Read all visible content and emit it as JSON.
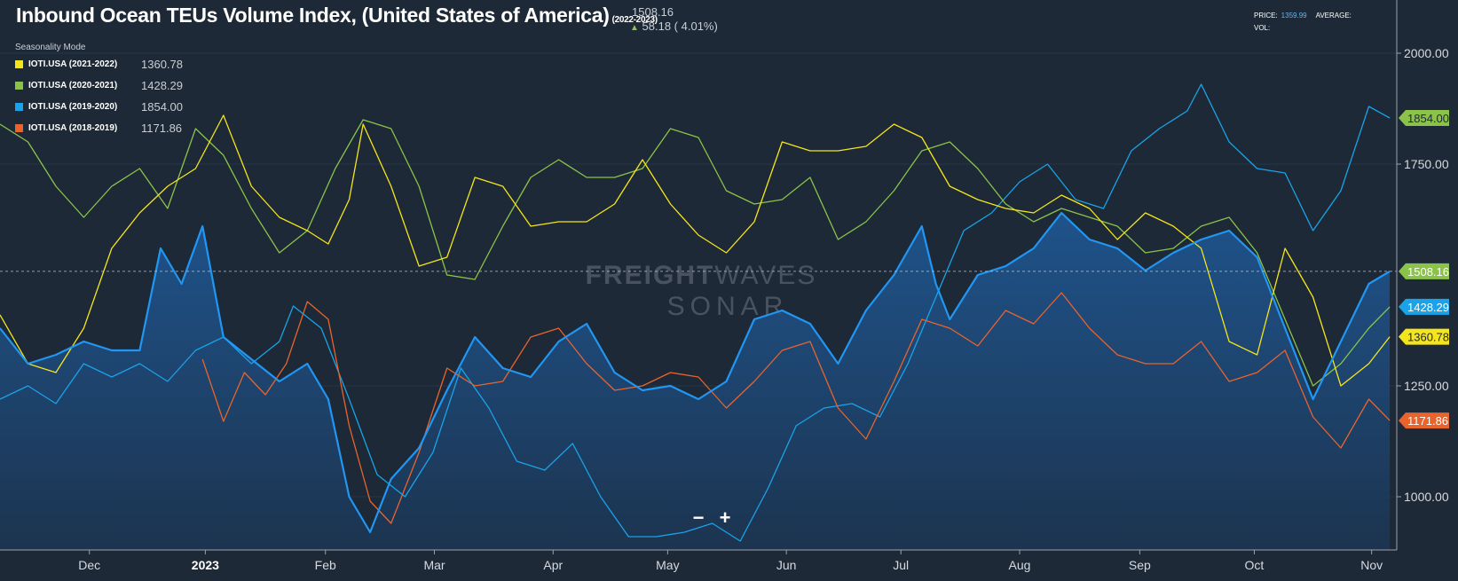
{
  "header": {
    "title": "Inbound Ocean TEUs Volume Index, (United States of America)",
    "period": "(2022-2023)",
    "last_value": "1508.16",
    "change": "58.18 ( 4.01%)",
    "seasonality_label": "Seasonality Mode"
  },
  "stats": {
    "price_label": "PRICE:",
    "price_value": "1359.99",
    "average_label": "AVERAGE:",
    "vol_label": "VOL:"
  },
  "watermark": {
    "line1a": "FREIGHT",
    "line1b": "WAVES",
    "line2": "SONAR"
  },
  "zoom": {
    "minus": "−",
    "plus": "+"
  },
  "legend": [
    {
      "name": "IOTI.USA (2021-2022)",
      "value": "1360.78",
      "color": "#f5e51d"
    },
    {
      "name": "IOTI.USA (2020-2021)",
      "value": "1428.29",
      "color": "#8bc34a"
    },
    {
      "name": "IOTI.USA (2019-2020)",
      "value": "1854.00",
      "color": "#1aa3e8"
    },
    {
      "name": "IOTI.USA (2018-2019)",
      "value": "1171.86",
      "color": "#e8642c"
    }
  ],
  "colors": {
    "background": "#1d2936",
    "current": "#2196f3",
    "grid": "#263545"
  },
  "chart_data": {
    "type": "line",
    "title": "Inbound Ocean TEUs Volume Index, (United States of America)",
    "ylim": [
      880,
      2120
    ],
    "y_ticks": [
      "2000.00",
      "1750.00",
      "1250.00",
      "1000.00"
    ],
    "y_tick_values": [
      2000,
      1750,
      1250,
      1000
    ],
    "x_tick_labels": [
      "Dec",
      "2023",
      "Feb",
      "Mar",
      "Apr",
      "May",
      "Jun",
      "Jul",
      "Aug",
      "Sep",
      "Oct",
      "Nov"
    ],
    "x_tick_positions": [
      0.064,
      0.147,
      0.233,
      0.311,
      0.396,
      0.478,
      0.563,
      0.645,
      0.73,
      0.816,
      0.898,
      0.982
    ],
    "current_level": 1508.16,
    "current_label": "1508.16",
    "series": [
      {
        "name": "IOTI.USA (2022-2023)",
        "color": "#2196f3",
        "last_label": "1508.16",
        "fill": true,
        "x": [
          0,
          0.02,
          0.04,
          0.06,
          0.08,
          0.1,
          0.115,
          0.13,
          0.145,
          0.16,
          0.18,
          0.2,
          0.22,
          0.235,
          0.25,
          0.265,
          0.28,
          0.3,
          0.32,
          0.34,
          0.36,
          0.38,
          0.4,
          0.42,
          0.44,
          0.46,
          0.48,
          0.5,
          0.52,
          0.54,
          0.56,
          0.58,
          0.6,
          0.62,
          0.64,
          0.66,
          0.67,
          0.68,
          0.7,
          0.72,
          0.74,
          0.76,
          0.78,
          0.8,
          0.82,
          0.84,
          0.86,
          0.88,
          0.9,
          0.92,
          0.94,
          0.96,
          0.98,
          0.995
        ],
        "y": [
          1380,
          1300,
          1320,
          1350,
          1330,
          1330,
          1560,
          1480,
          1610,
          1360,
          1310,
          1260,
          1300,
          1220,
          1000,
          920,
          1040,
          1110,
          1240,
          1360,
          1290,
          1270,
          1350,
          1390,
          1280,
          1240,
          1250,
          1220,
          1260,
          1400,
          1420,
          1390,
          1300,
          1420,
          1500,
          1610,
          1480,
          1400,
          1500,
          1520,
          1560,
          1640,
          1580,
          1560,
          1510,
          1550,
          1580,
          1600,
          1540,
          1380,
          1220,
          1350,
          1480,
          1508.16
        ]
      },
      {
        "name": "IOTI.USA (2019-2020)",
        "color": "#1aa3e8",
        "last_label": "1854.00",
        "x": [
          0,
          0.02,
          0.04,
          0.06,
          0.08,
          0.1,
          0.12,
          0.14,
          0.16,
          0.18,
          0.2,
          0.21,
          0.23,
          0.25,
          0.27,
          0.29,
          0.31,
          0.33,
          0.35,
          0.37,
          0.39,
          0.41,
          0.43,
          0.45,
          0.47,
          0.49,
          0.51,
          0.53,
          0.55,
          0.57,
          0.59,
          0.61,
          0.63,
          0.65,
          0.67,
          0.69,
          0.71,
          0.73,
          0.75,
          0.77,
          0.79,
          0.81,
          0.83,
          0.85,
          0.86,
          0.88,
          0.9,
          0.92,
          0.94,
          0.96,
          0.98,
          0.995
        ],
        "y": [
          1220,
          1250,
          1210,
          1300,
          1270,
          1300,
          1260,
          1330,
          1360,
          1300,
          1350,
          1430,
          1380,
          1220,
          1050,
          1000,
          1100,
          1290,
          1200,
          1080,
          1060,
          1120,
          1000,
          910,
          910,
          920,
          940,
          900,
          1020,
          1160,
          1200,
          1210,
          1180,
          1300,
          1450,
          1600,
          1640,
          1710,
          1750,
          1670,
          1650,
          1780,
          1830,
          1870,
          1930,
          1800,
          1740,
          1730,
          1600,
          1690,
          1880,
          1854
        ]
      },
      {
        "name": "IOTI.USA (2020-2021)",
        "color": "#8bc34a",
        "last_label": "1428.29",
        "x": [
          0,
          0.02,
          0.04,
          0.06,
          0.08,
          0.1,
          0.12,
          0.14,
          0.16,
          0.18,
          0.2,
          0.22,
          0.24,
          0.26,
          0.28,
          0.3,
          0.32,
          0.34,
          0.36,
          0.38,
          0.4,
          0.42,
          0.44,
          0.46,
          0.48,
          0.5,
          0.52,
          0.54,
          0.56,
          0.58,
          0.6,
          0.62,
          0.64,
          0.66,
          0.68,
          0.7,
          0.72,
          0.74,
          0.76,
          0.78,
          0.8,
          0.82,
          0.84,
          0.86,
          0.88,
          0.9,
          0.92,
          0.94,
          0.96,
          0.98,
          0.995
        ],
        "y": [
          1840,
          1800,
          1700,
          1630,
          1700,
          1740,
          1650,
          1830,
          1770,
          1650,
          1550,
          1600,
          1740,
          1850,
          1830,
          1700,
          1500,
          1490,
          1610,
          1720,
          1760,
          1720,
          1720,
          1740,
          1830,
          1810,
          1690,
          1660,
          1670,
          1720,
          1580,
          1620,
          1690,
          1780,
          1800,
          1740,
          1660,
          1620,
          1650,
          1630,
          1610,
          1550,
          1560,
          1610,
          1630,
          1550,
          1400,
          1250,
          1300,
          1380,
          1428.29
        ]
      },
      {
        "name": "IOTI.USA (2021-2022)",
        "color": "#f5e51d",
        "last_label": "1360.78",
        "x": [
          0,
          0.02,
          0.04,
          0.06,
          0.08,
          0.1,
          0.12,
          0.14,
          0.16,
          0.18,
          0.2,
          0.22,
          0.235,
          0.25,
          0.26,
          0.28,
          0.3,
          0.32,
          0.34,
          0.36,
          0.38,
          0.4,
          0.42,
          0.44,
          0.46,
          0.48,
          0.5,
          0.52,
          0.54,
          0.56,
          0.58,
          0.6,
          0.62,
          0.64,
          0.66,
          0.68,
          0.7,
          0.72,
          0.74,
          0.76,
          0.78,
          0.8,
          0.82,
          0.84,
          0.86,
          0.88,
          0.9,
          0.92,
          0.94,
          0.96,
          0.98,
          0.995
        ],
        "y": [
          1410,
          1300,
          1280,
          1380,
          1560,
          1640,
          1700,
          1740,
          1860,
          1700,
          1630,
          1600,
          1570,
          1670,
          1840,
          1700,
          1520,
          1540,
          1720,
          1700,
          1610,
          1620,
          1620,
          1660,
          1760,
          1660,
          1590,
          1550,
          1620,
          1800,
          1780,
          1780,
          1790,
          1840,
          1810,
          1700,
          1670,
          1650,
          1640,
          1680,
          1650,
          1580,
          1640,
          1610,
          1560,
          1350,
          1320,
          1560,
          1450,
          1250,
          1300,
          1360.78
        ]
      },
      {
        "name": "IOTI.USA (2018-2019)",
        "color": "#e8642c",
        "last_label": "1171.86",
        "x": [
          0.145,
          0.16,
          0.175,
          0.19,
          0.205,
          0.22,
          0.235,
          0.25,
          0.265,
          0.28,
          0.3,
          0.32,
          0.34,
          0.36,
          0.38,
          0.4,
          0.42,
          0.44,
          0.46,
          0.48,
          0.5,
          0.52,
          0.54,
          0.56,
          0.58,
          0.6,
          0.62,
          0.64,
          0.66,
          0.68,
          0.7,
          0.72,
          0.74,
          0.76,
          0.78,
          0.8,
          0.82,
          0.84,
          0.86,
          0.88,
          0.9,
          0.92,
          0.94,
          0.96,
          0.98,
          0.995
        ],
        "y": [
          1310,
          1170,
          1280,
          1230,
          1300,
          1440,
          1400,
          1160,
          990,
          940,
          1100,
          1290,
          1250,
          1260,
          1360,
          1380,
          1300,
          1240,
          1250,
          1280,
          1270,
          1200,
          1260,
          1330,
          1350,
          1200,
          1130,
          1260,
          1400,
          1380,
          1340,
          1420,
          1390,
          1460,
          1380,
          1320,
          1300,
          1300,
          1350,
          1260,
          1280,
          1330,
          1180,
          1110,
          1220,
          1171.86
        ]
      }
    ]
  }
}
